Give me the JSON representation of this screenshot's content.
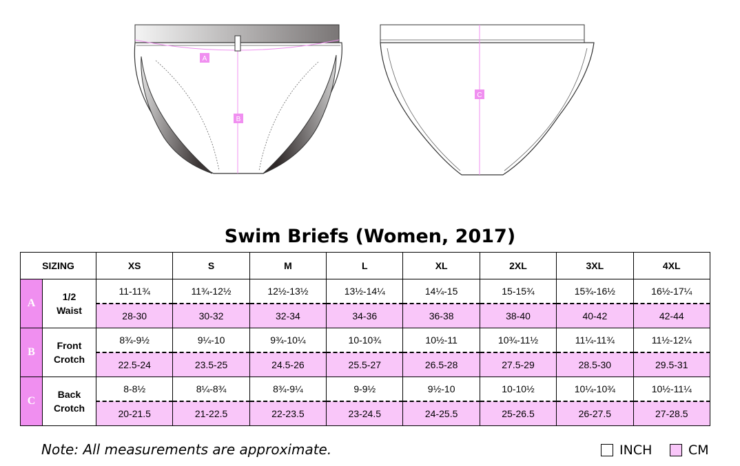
{
  "title": "Swim Briefs (Women, 2017)",
  "measure_labels": {
    "a": "A",
    "b": "B",
    "c": "C"
  },
  "table": {
    "corner": "SIZING",
    "sizes": [
      "XS",
      "S",
      "M",
      "L",
      "XL",
      "2XL",
      "3XL",
      "4XL"
    ],
    "rows": [
      {
        "letter": "A",
        "label_line1": "1/2",
        "label_line2": "Waist",
        "inch": [
          "11-11¾",
          "11¾-12½",
          "12½-13½",
          "13½-14¼",
          "14¼-15",
          "15-15¾",
          "15¾-16½",
          "16½-17¼"
        ],
        "cm": [
          "28-30",
          "30-32",
          "32-34",
          "34-36",
          "36-38",
          "38-40",
          "40-42",
          "42-44"
        ]
      },
      {
        "letter": "B",
        "label_line1": "Front",
        "label_line2": "Crotch",
        "inch": [
          "8¾-9½",
          "9¼-10",
          "9¾-10¼",
          "10-10¾",
          "10½-11",
          "10¾-11½",
          "11¼-11¾",
          "11½-12¼"
        ],
        "cm": [
          "22.5-24",
          "23.5-25",
          "24.5-26",
          "25.5-27",
          "26.5-28",
          "27.5-29",
          "28.5-30",
          "29.5-31"
        ]
      },
      {
        "letter": "C",
        "label_line1": "Back",
        "label_line2": "Crotch",
        "inch": [
          "8-8½",
          "8¼-8¾",
          "8¾-9¼",
          "9-9½",
          "9½-10",
          "10-10½",
          "10¼-10¾",
          "10½-11¼"
        ],
        "cm": [
          "20-21.5",
          "21-22.5",
          "22-23.5",
          "23-24.5",
          "24-25.5",
          "25-26.5",
          "26-27.5",
          "27-28.5"
        ]
      }
    ]
  },
  "note": "Note: All measurements are approximate.",
  "legend": {
    "inch": "INCH",
    "cm": "CM"
  },
  "colors": {
    "accent": "#f08ff0",
    "cm_fill": "#f9c6f9"
  }
}
